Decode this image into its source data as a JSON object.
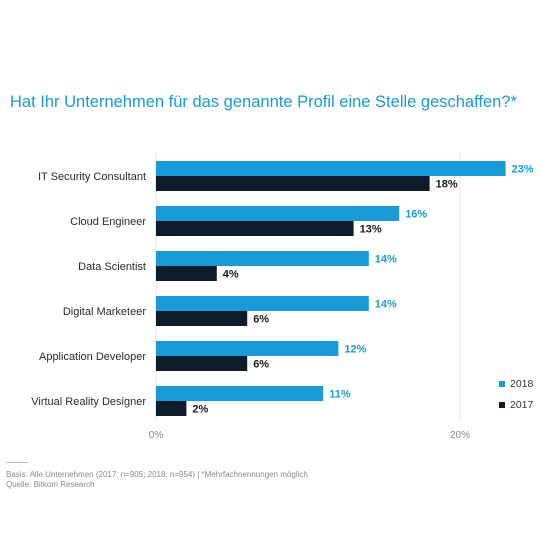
{
  "chart_data": {
    "type": "bar",
    "orientation": "horizontal",
    "title": "Hat Ihr Unternehmen für das genannte Profil eine Stelle geschaffen?*",
    "categories": [
      "IT Security Consultant",
      "Cloud Engineer",
      "Data Scientist",
      "Digital Marketeer",
      "Application Developer",
      "Virtual Reality Designer"
    ],
    "series": [
      {
        "name": "2018",
        "color": "#1a9ad6",
        "values": [
          23,
          16,
          14,
          14,
          12,
          11
        ],
        "labels": [
          "23%",
          "16%",
          "14%",
          "14%",
          "12%",
          "11%"
        ]
      },
      {
        "name": "2017",
        "color": "#0d1b2a",
        "values": [
          18,
          13,
          4,
          6,
          6,
          2
        ],
        "labels": [
          "18%",
          "13%",
          "4%",
          "6%",
          "6%",
          "2%"
        ]
      }
    ],
    "xlim": [
      0,
      25
    ],
    "xticks": [
      0,
      20
    ],
    "xtick_labels": [
      "0%",
      "20%"
    ],
    "grid": true,
    "legend_position": "bottom-right"
  },
  "footnote": {
    "basis": "Basis: Alle Unternehmen (2017: n=905; 2018: n=954) | *Mehrfachnennungen möglich",
    "source": "Quelle: Bitkom Research"
  }
}
